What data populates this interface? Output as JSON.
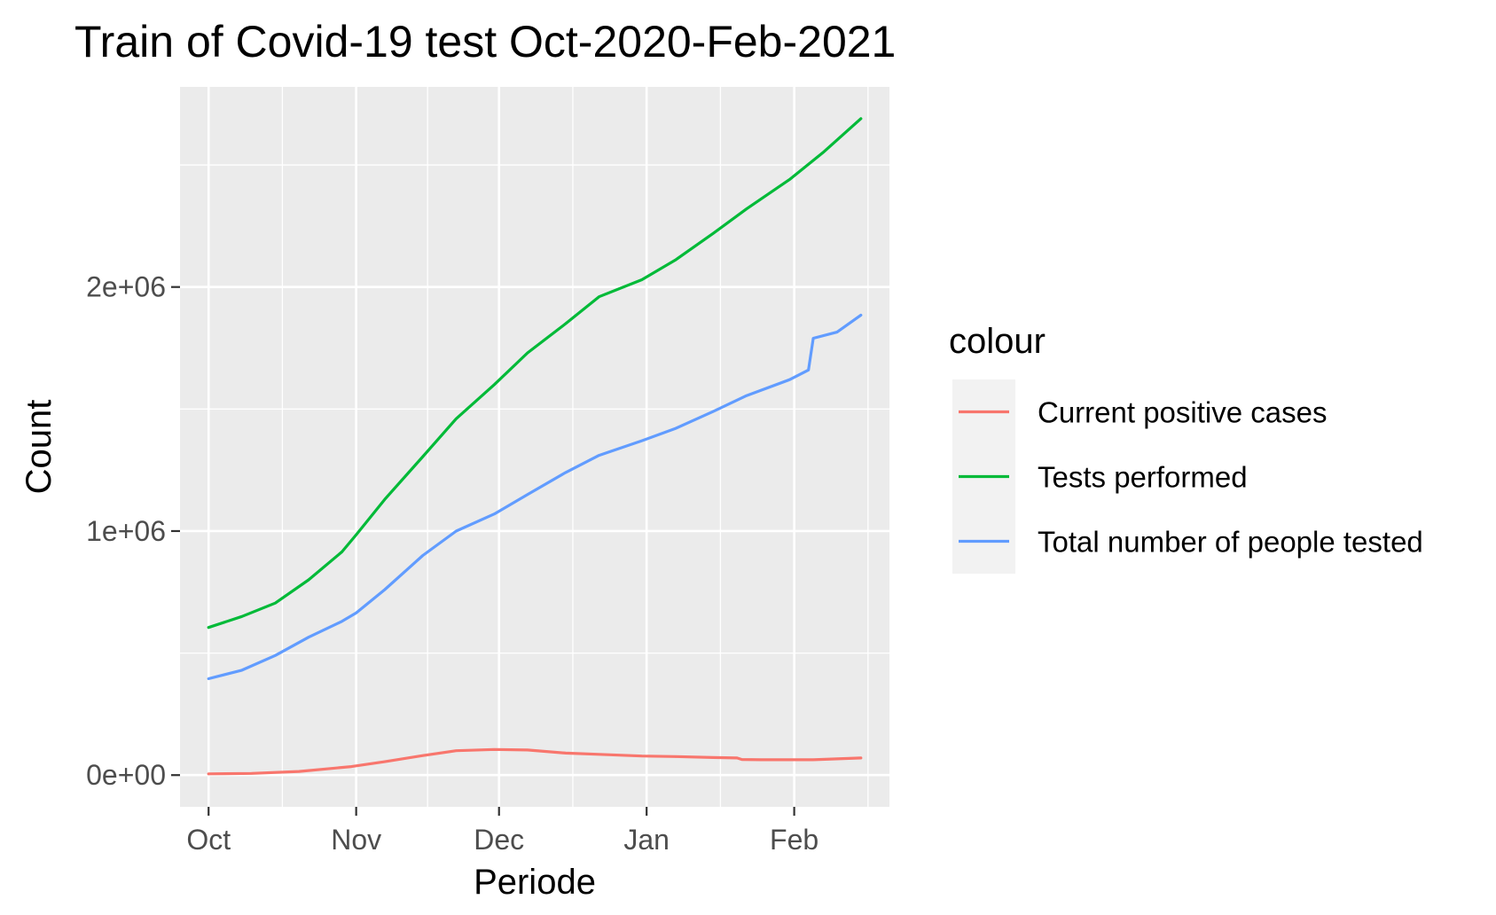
{
  "chart_data": {
    "type": "line",
    "title": "Train of Covid-19 test Oct-2020-Feb-2021",
    "xlabel": "Periode",
    "ylabel": "Count",
    "x_ticks": [
      "Oct",
      "Nov",
      "Dec",
      "Jan",
      "Feb"
    ],
    "x_tick_dates": [
      "2020-10-01",
      "2020-11-01",
      "2020-12-01",
      "2021-01-01",
      "2021-02-01"
    ],
    "xlim": [
      "2020-09-25",
      "2021-02-21"
    ],
    "y_ticks": [
      "0e+00",
      "1e+06",
      "2e+06"
    ],
    "y_tick_values": [
      0,
      1000000,
      2000000
    ],
    "ylim": [
      -130000,
      2820000
    ],
    "grid": true,
    "legend_title": "colour",
    "legend_position": "right",
    "series": [
      {
        "name": "Current positive cases",
        "color": "#F8766D",
        "points": [
          [
            "2020-10-01",
            5000
          ],
          [
            "2020-10-10",
            7000
          ],
          [
            "2020-10-20",
            15000
          ],
          [
            "2020-10-31",
            35000
          ],
          [
            "2020-11-07",
            55000
          ],
          [
            "2020-11-15",
            80000
          ],
          [
            "2020-11-22",
            100000
          ],
          [
            "2020-11-30",
            105000
          ],
          [
            "2020-12-07",
            103000
          ],
          [
            "2020-12-15",
            90000
          ],
          [
            "2020-12-22",
            85000
          ],
          [
            "2020-12-31",
            78000
          ],
          [
            "2021-01-07",
            76000
          ],
          [
            "2021-01-15",
            72000
          ],
          [
            "2021-01-20",
            70000
          ],
          [
            "2021-01-21",
            64000
          ],
          [
            "2021-01-25",
            63000
          ],
          [
            "2021-02-05",
            63000
          ],
          [
            "2021-02-15",
            70000
          ]
        ]
      },
      {
        "name": "Tests performed",
        "color": "#00BA38",
        "points": [
          [
            "2020-10-01",
            605000
          ],
          [
            "2020-10-08",
            650000
          ],
          [
            "2020-10-15",
            705000
          ],
          [
            "2020-10-22",
            800000
          ],
          [
            "2020-10-29",
            915000
          ],
          [
            "2020-11-01",
            985000
          ],
          [
            "2020-11-07",
            1130000
          ],
          [
            "2020-11-15",
            1305000
          ],
          [
            "2020-11-22",
            1460000
          ],
          [
            "2020-11-30",
            1600000
          ],
          [
            "2020-12-07",
            1730000
          ],
          [
            "2020-12-15",
            1850000
          ],
          [
            "2020-12-22",
            1960000
          ],
          [
            "2020-12-31",
            2030000
          ],
          [
            "2021-01-07",
            2110000
          ],
          [
            "2021-01-15",
            2220000
          ],
          [
            "2021-01-22",
            2320000
          ],
          [
            "2021-01-31",
            2440000
          ],
          [
            "2021-02-07",
            2550000
          ],
          [
            "2021-02-15",
            2690000
          ]
        ]
      },
      {
        "name": "Total number of people tested",
        "color": "#619CFF",
        "points": [
          [
            "2020-10-01",
            395000
          ],
          [
            "2020-10-08",
            430000
          ],
          [
            "2020-10-15",
            490000
          ],
          [
            "2020-10-22",
            565000
          ],
          [
            "2020-10-29",
            630000
          ],
          [
            "2020-11-01",
            665000
          ],
          [
            "2020-11-07",
            760000
          ],
          [
            "2020-11-15",
            900000
          ],
          [
            "2020-11-22",
            1000000
          ],
          [
            "2020-11-30",
            1070000
          ],
          [
            "2020-12-07",
            1150000
          ],
          [
            "2020-12-15",
            1240000
          ],
          [
            "2020-12-22",
            1310000
          ],
          [
            "2020-12-31",
            1370000
          ],
          [
            "2021-01-07",
            1420000
          ],
          [
            "2021-01-15",
            1490000
          ],
          [
            "2021-01-22",
            1555000
          ],
          [
            "2021-01-31",
            1620000
          ],
          [
            "2021-02-04",
            1660000
          ],
          [
            "2021-02-05",
            1790000
          ],
          [
            "2021-02-10",
            1815000
          ],
          [
            "2021-02-15",
            1885000
          ]
        ]
      }
    ]
  }
}
